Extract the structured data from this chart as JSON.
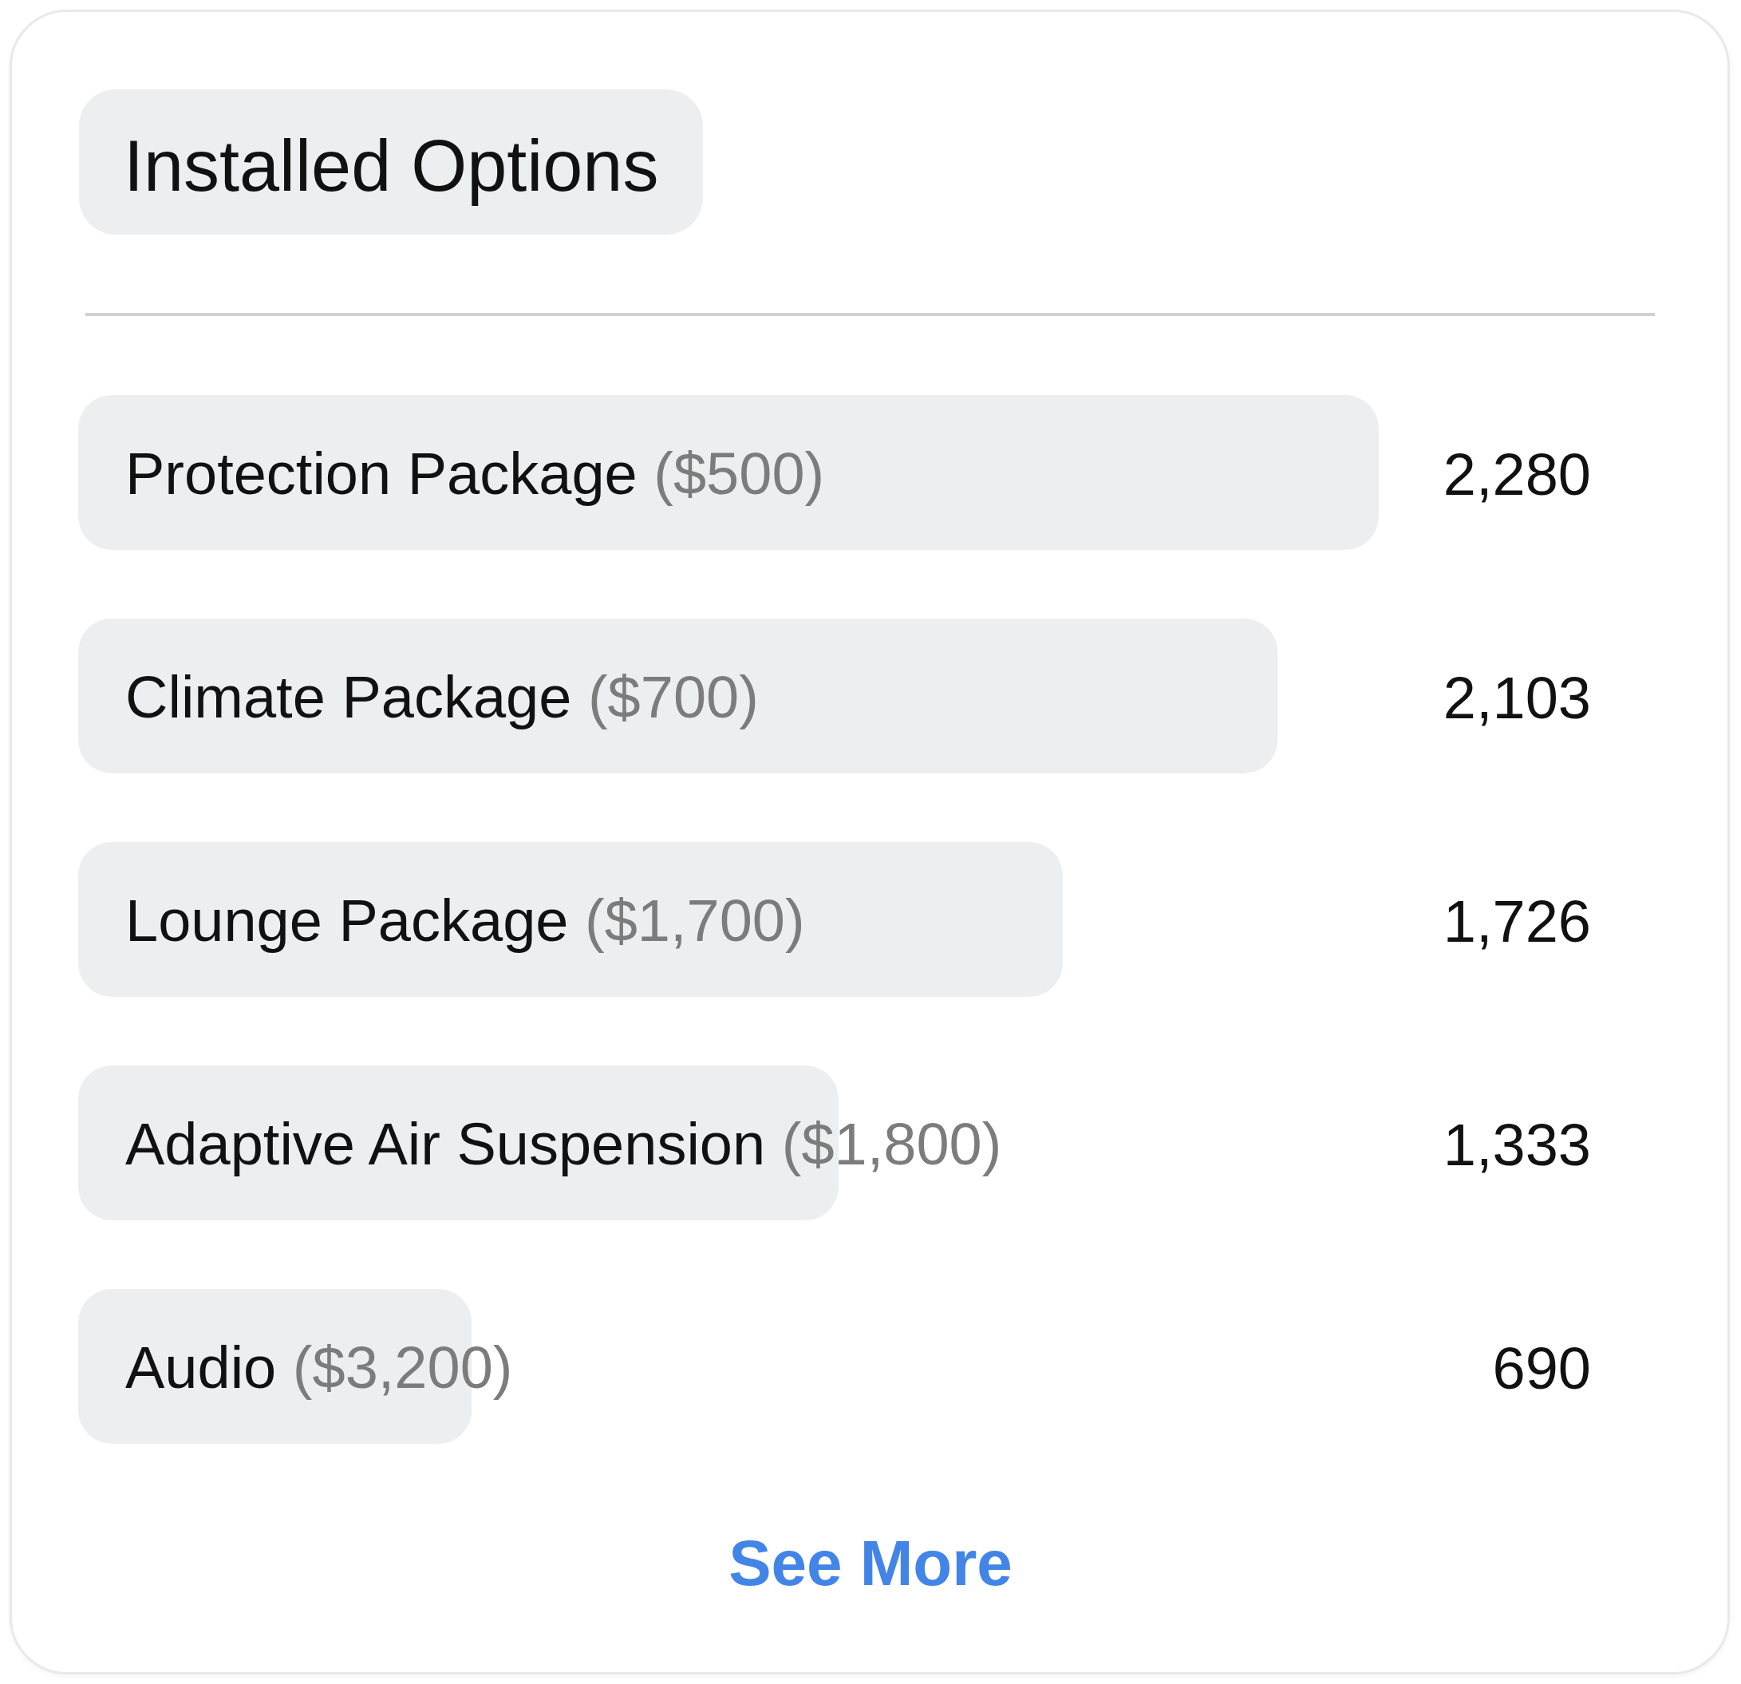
{
  "chart_data": {
    "type": "bar",
    "orientation": "horizontal",
    "title": "Installed Options",
    "categories": [
      "Protection Package ($500)",
      "Climate Package ($700)",
      "Lounge Package ($1,700)",
      "Adaptive Air Suspension ($1,800)",
      "Audio ($3,200)"
    ],
    "values": [
      2280,
      2103,
      1726,
      1333,
      690
    ],
    "value_labels": [
      "2,280",
      "2,103",
      "1,726",
      "1,333",
      "690"
    ],
    "color": "#edeef0",
    "tick_labels": "y",
    "annotations": [
      "See More"
    ]
  }
}
